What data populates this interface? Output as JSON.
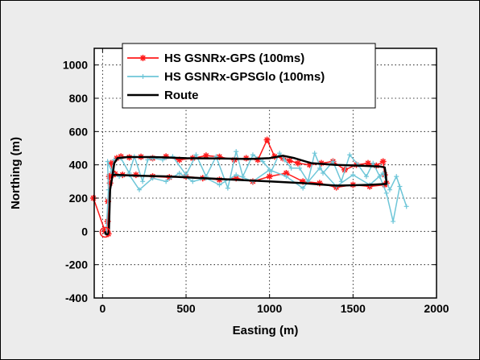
{
  "chart_data": {
    "type": "line",
    "title": "",
    "xlabel": "Easting (m)",
    "ylabel": "Northing (m)",
    "xlim": [
      -50,
      2000
    ],
    "ylim": [
      -400,
      1100
    ],
    "xticks": [
      0,
      500,
      1000,
      1500,
      2000
    ],
    "xtick_labels": [
      "0",
      "500",
      "1000",
      "1500",
      "2000"
    ],
    "yticks": [
      -400,
      -200,
      0,
      200,
      400,
      600,
      800,
      1000
    ],
    "ytick_labels": [
      "-400",
      "-200",
      "0",
      "200",
      "400",
      "600",
      "800",
      "1000"
    ],
    "grid": true,
    "legend_position": "top-center",
    "series": [
      {
        "name": "HS GSNRx-GPS (100ms)",
        "color": "#ff1a1a",
        "marker": "asterisk",
        "x": [
          -55,
          15,
          35,
          30,
          32,
          45,
          40,
          62,
          50,
          85,
          110,
          160,
          230,
          300,
          380,
          460,
          540,
          620,
          700,
          790,
          860,
          930,
          985,
          1030,
          1080,
          1120,
          1170,
          1240,
          1310,
          1380,
          1450,
          1520,
          1590,
          1640,
          1680,
          1690,
          1700,
          1690,
          1600,
          1500,
          1400,
          1300,
          1200,
          1100,
          1000,
          900,
          800,
          700,
          600,
          500,
          400,
          300,
          200,
          120,
          75,
          62
        ],
        "y": [
          200,
          0,
          -15,
          60,
          180,
          290,
          330,
          350,
          410,
          440,
          450,
          445,
          448,
          440,
          450,
          430,
          440,
          455,
          448,
          430,
          440,
          430,
          550,
          450,
          440,
          425,
          410,
          400,
          410,
          420,
          370,
          400,
          410,
          395,
          420,
          340,
          290,
          280,
          270,
          280,
          265,
          290,
          300,
          350,
          330,
          300,
          320,
          310,
          320,
          330,
          325,
          330,
          340,
          340,
          345,
          340
        ]
      },
      {
        "name": "HS GSNRx-GPSGlo (100ms)",
        "color": "#6ec6d8",
        "marker": "plus",
        "x": [
          22,
          35,
          30,
          55,
          70,
          110,
          160,
          190,
          240,
          270,
          300,
          360,
          420,
          500,
          560,
          620,
          680,
          750,
          800,
          840,
          900,
          960,
          1010,
          1060,
          1090,
          1130,
          1180,
          1230,
          1270,
          1320,
          1380,
          1430,
          1480,
          1530,
          1580,
          1620,
          1660,
          1700,
          1740,
          1780,
          1820,
          1760,
          1720,
          1680,
          1600,
          1500,
          1400,
          1300,
          1200,
          1100,
          1000,
          900,
          800,
          700,
          620,
          540,
          460,
          380,
          300,
          220,
          160,
          100,
          60
        ],
        "y": [
          -10,
          250,
          420,
          360,
          430,
          440,
          350,
          450,
          300,
          430,
          440,
          430,
          450,
          340,
          460,
          330,
          450,
          260,
          480,
          330,
          460,
          420,
          360,
          470,
          430,
          380,
          380,
          300,
          470,
          350,
          420,
          300,
          460,
          400,
          330,
          410,
          330,
          230,
          60,
          270,
          150,
          330,
          250,
          350,
          280,
          340,
          270,
          380,
          260,
          330,
          370,
          300,
          340,
          280,
          320,
          300,
          350,
          300,
          320,
          250,
          340,
          330,
          350
        ]
      },
      {
        "name": "Route",
        "color": "#000000",
        "marker": "none",
        "x": [
          15,
          18,
          35,
          38,
          45,
          60,
          70,
          90,
          150,
          300,
          500,
          700,
          880,
          1000,
          1080,
          1150,
          1250,
          1400,
          1550,
          1660,
          1690,
          1695,
          1700,
          1700,
          1600,
          1400,
          1200,
          1000,
          800,
          600,
          400,
          200,
          80,
          62
        ],
        "y": [
          0,
          -15,
          -18,
          0,
          250,
          340,
          410,
          440,
          447,
          447,
          440,
          438,
          435,
          440,
          455,
          440,
          410,
          400,
          395,
          390,
          385,
          350,
          300,
          285,
          280,
          275,
          290,
          300,
          310,
          320,
          330,
          335,
          340,
          340
        ]
      }
    ]
  }
}
